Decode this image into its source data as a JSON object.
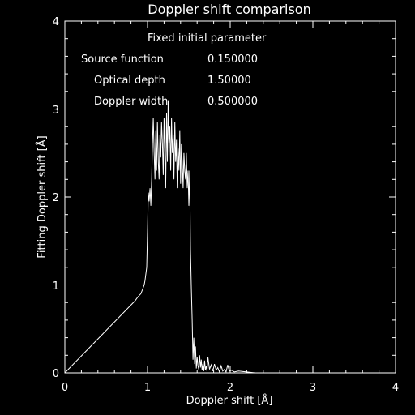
{
  "chart_data": {
    "type": "line",
    "title": "Doppler shift comparison",
    "xlabel": "Doppler shift [Å]",
    "ylabel": "Fitting Doppler shift [Å]",
    "xlim": [
      0,
      4
    ],
    "ylim": [
      0,
      4
    ],
    "xticks": [
      "0",
      "1",
      "2",
      "3",
      "4"
    ],
    "yticks": [
      "0",
      "1",
      "2",
      "3",
      "4"
    ],
    "grid": false,
    "line_color": "#ffffff",
    "background": "#000000",
    "annotations": {
      "heading": "Fixed initial parameter",
      "rows": [
        {
          "label": "Source function",
          "value": "0.150000"
        },
        {
          "label": "Optical depth",
          "value": "1.50000"
        },
        {
          "label": "Doppler width",
          "value": "0.500000"
        }
      ]
    },
    "series": [
      {
        "x": [
          0.0,
          0.85,
          0.88,
          0.92,
          0.94,
          0.96,
          0.97,
          0.99,
          1.0,
          1.01,
          1.02,
          1.03,
          1.04,
          1.05,
          1.06,
          1.07,
          1.08,
          1.09,
          1.1,
          1.11,
          1.12,
          1.13,
          1.14,
          1.15,
          1.16,
          1.17,
          1.18,
          1.19,
          1.2,
          1.21,
          1.22,
          1.23,
          1.24,
          1.25,
          1.26,
          1.27,
          1.28,
          1.29,
          1.3,
          1.31,
          1.32,
          1.33,
          1.34,
          1.35,
          1.36,
          1.37,
          1.38,
          1.39,
          1.4,
          1.41,
          1.42,
          1.43,
          1.44,
          1.45,
          1.46,
          1.47,
          1.48,
          1.49,
          1.5,
          1.51,
          1.52,
          1.53,
          1.54,
          1.55,
          1.56,
          1.57,
          1.58,
          1.59,
          1.6,
          1.61,
          1.62,
          1.63,
          1.64,
          1.65,
          1.66,
          1.67,
          1.68,
          1.69,
          1.7,
          1.71,
          1.72,
          1.73,
          1.75,
          1.77,
          1.79,
          1.81,
          1.83,
          1.85,
          1.87,
          1.89,
          1.91,
          1.93,
          1.95,
          1.97,
          1.99,
          2.02,
          2.05,
          2.1,
          2.2,
          2.3,
          2.5,
          3.0,
          4.0
        ],
        "y": [
          0.0,
          0.82,
          0.86,
          0.9,
          0.95,
          1.0,
          1.05,
          1.2,
          1.6,
          2.05,
          1.95,
          2.1,
          1.9,
          2.2,
          2.6,
          2.9,
          2.5,
          2.2,
          2.75,
          2.3,
          2.85,
          2.4,
          2.2,
          2.7,
          2.45,
          2.85,
          2.6,
          2.25,
          2.9,
          2.55,
          2.1,
          2.95,
          2.4,
          3.1,
          2.6,
          2.8,
          2.3,
          2.9,
          2.5,
          2.7,
          2.2,
          2.85,
          2.4,
          2.65,
          2.1,
          2.55,
          2.3,
          2.75,
          2.15,
          2.6,
          2.4,
          2.1,
          2.5,
          2.3,
          2.2,
          2.5,
          2.1,
          2.3,
          1.9,
          2.3,
          1.4,
          0.95,
          0.6,
          0.15,
          0.4,
          0.1,
          0.3,
          0.05,
          0.18,
          0.08,
          0.04,
          0.2,
          0.06,
          0.15,
          0.03,
          0.1,
          0.02,
          0.14,
          0.03,
          0.08,
          0.02,
          0.18,
          0.04,
          0.09,
          0.02,
          0.1,
          0.03,
          0.06,
          0.01,
          0.08,
          0.02,
          0.04,
          0.01,
          0.09,
          0.02,
          0.03,
          0.01,
          0.02,
          0.01,
          0.0,
          0.0,
          0.0,
          0.0
        ]
      }
    ]
  }
}
